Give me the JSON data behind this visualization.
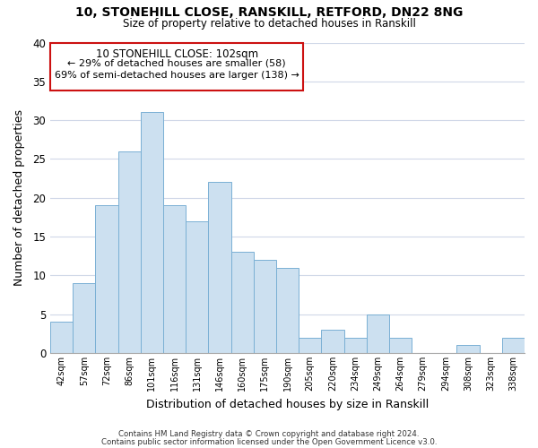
{
  "title1": "10, STONEHILL CLOSE, RANSKILL, RETFORD, DN22 8NG",
  "title2": "Size of property relative to detached houses in Ranskill",
  "xlabel": "Distribution of detached houses by size in Ranskill",
  "ylabel": "Number of detached properties",
  "bar_color": "#cce0f0",
  "bar_edge_color": "#7ab0d4",
  "highlight_color": "#cc1111",
  "background_color": "#ffffff",
  "grid_color": "#d0d8e8",
  "bins": [
    "42sqm",
    "57sqm",
    "72sqm",
    "86sqm",
    "101sqm",
    "116sqm",
    "131sqm",
    "146sqm",
    "160sqm",
    "175sqm",
    "190sqm",
    "205sqm",
    "220sqm",
    "234sqm",
    "249sqm",
    "264sqm",
    "279sqm",
    "294sqm",
    "308sqm",
    "323sqm",
    "338sqm"
  ],
  "values": [
    4,
    9,
    19,
    26,
    31,
    19,
    17,
    22,
    13,
    12,
    11,
    2,
    3,
    2,
    5,
    2,
    0,
    0,
    1,
    0,
    2
  ],
  "ylim": [
    0,
    40
  ],
  "yticks": [
    0,
    5,
    10,
    15,
    20,
    25,
    30,
    35,
    40
  ],
  "annotation_title": "10 STONEHILL CLOSE: 102sqm",
  "annotation_line1": "← 29% of detached houses are smaller (58)",
  "annotation_line2": "69% of semi-detached houses are larger (138) →",
  "footer1": "Contains HM Land Registry data © Crown copyright and database right 2024.",
  "footer2": "Contains public sector information licensed under the Open Government Licence v3.0."
}
